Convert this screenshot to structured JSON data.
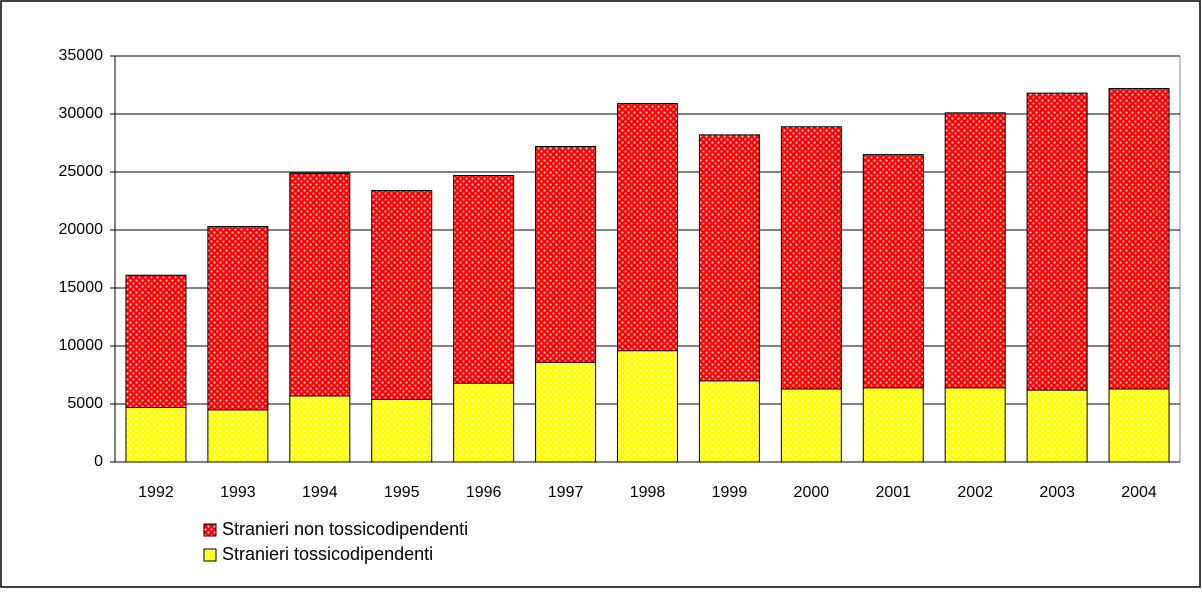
{
  "chart_data": {
    "type": "stacked_bar",
    "categories": [
      "1992",
      "1993",
      "1994",
      "1995",
      "1996",
      "1997",
      "1998",
      "1999",
      "2000",
      "2001",
      "2002",
      "2003",
      "2004"
    ],
    "series": [
      {
        "name": "Stranieri tossicodipendenti",
        "color": "#ffff00",
        "values": [
          4700,
          4500,
          5700,
          5400,
          6800,
          8600,
          9600,
          7000,
          6300,
          6400,
          6400,
          6200,
          6300
        ]
      },
      {
        "name": "Stranieri non tossicodipendenti",
        "color": "#ff0000",
        "values": [
          11400,
          15800,
          19200,
          18000,
          17900,
          18600,
          21300,
          21200,
          22600,
          20100,
          23700,
          25600,
          25900
        ]
      }
    ],
    "ylim": [
      0,
      35000
    ],
    "yticks": [
      0,
      5000,
      10000,
      15000,
      20000,
      25000,
      30000,
      35000
    ],
    "grid": true
  }
}
